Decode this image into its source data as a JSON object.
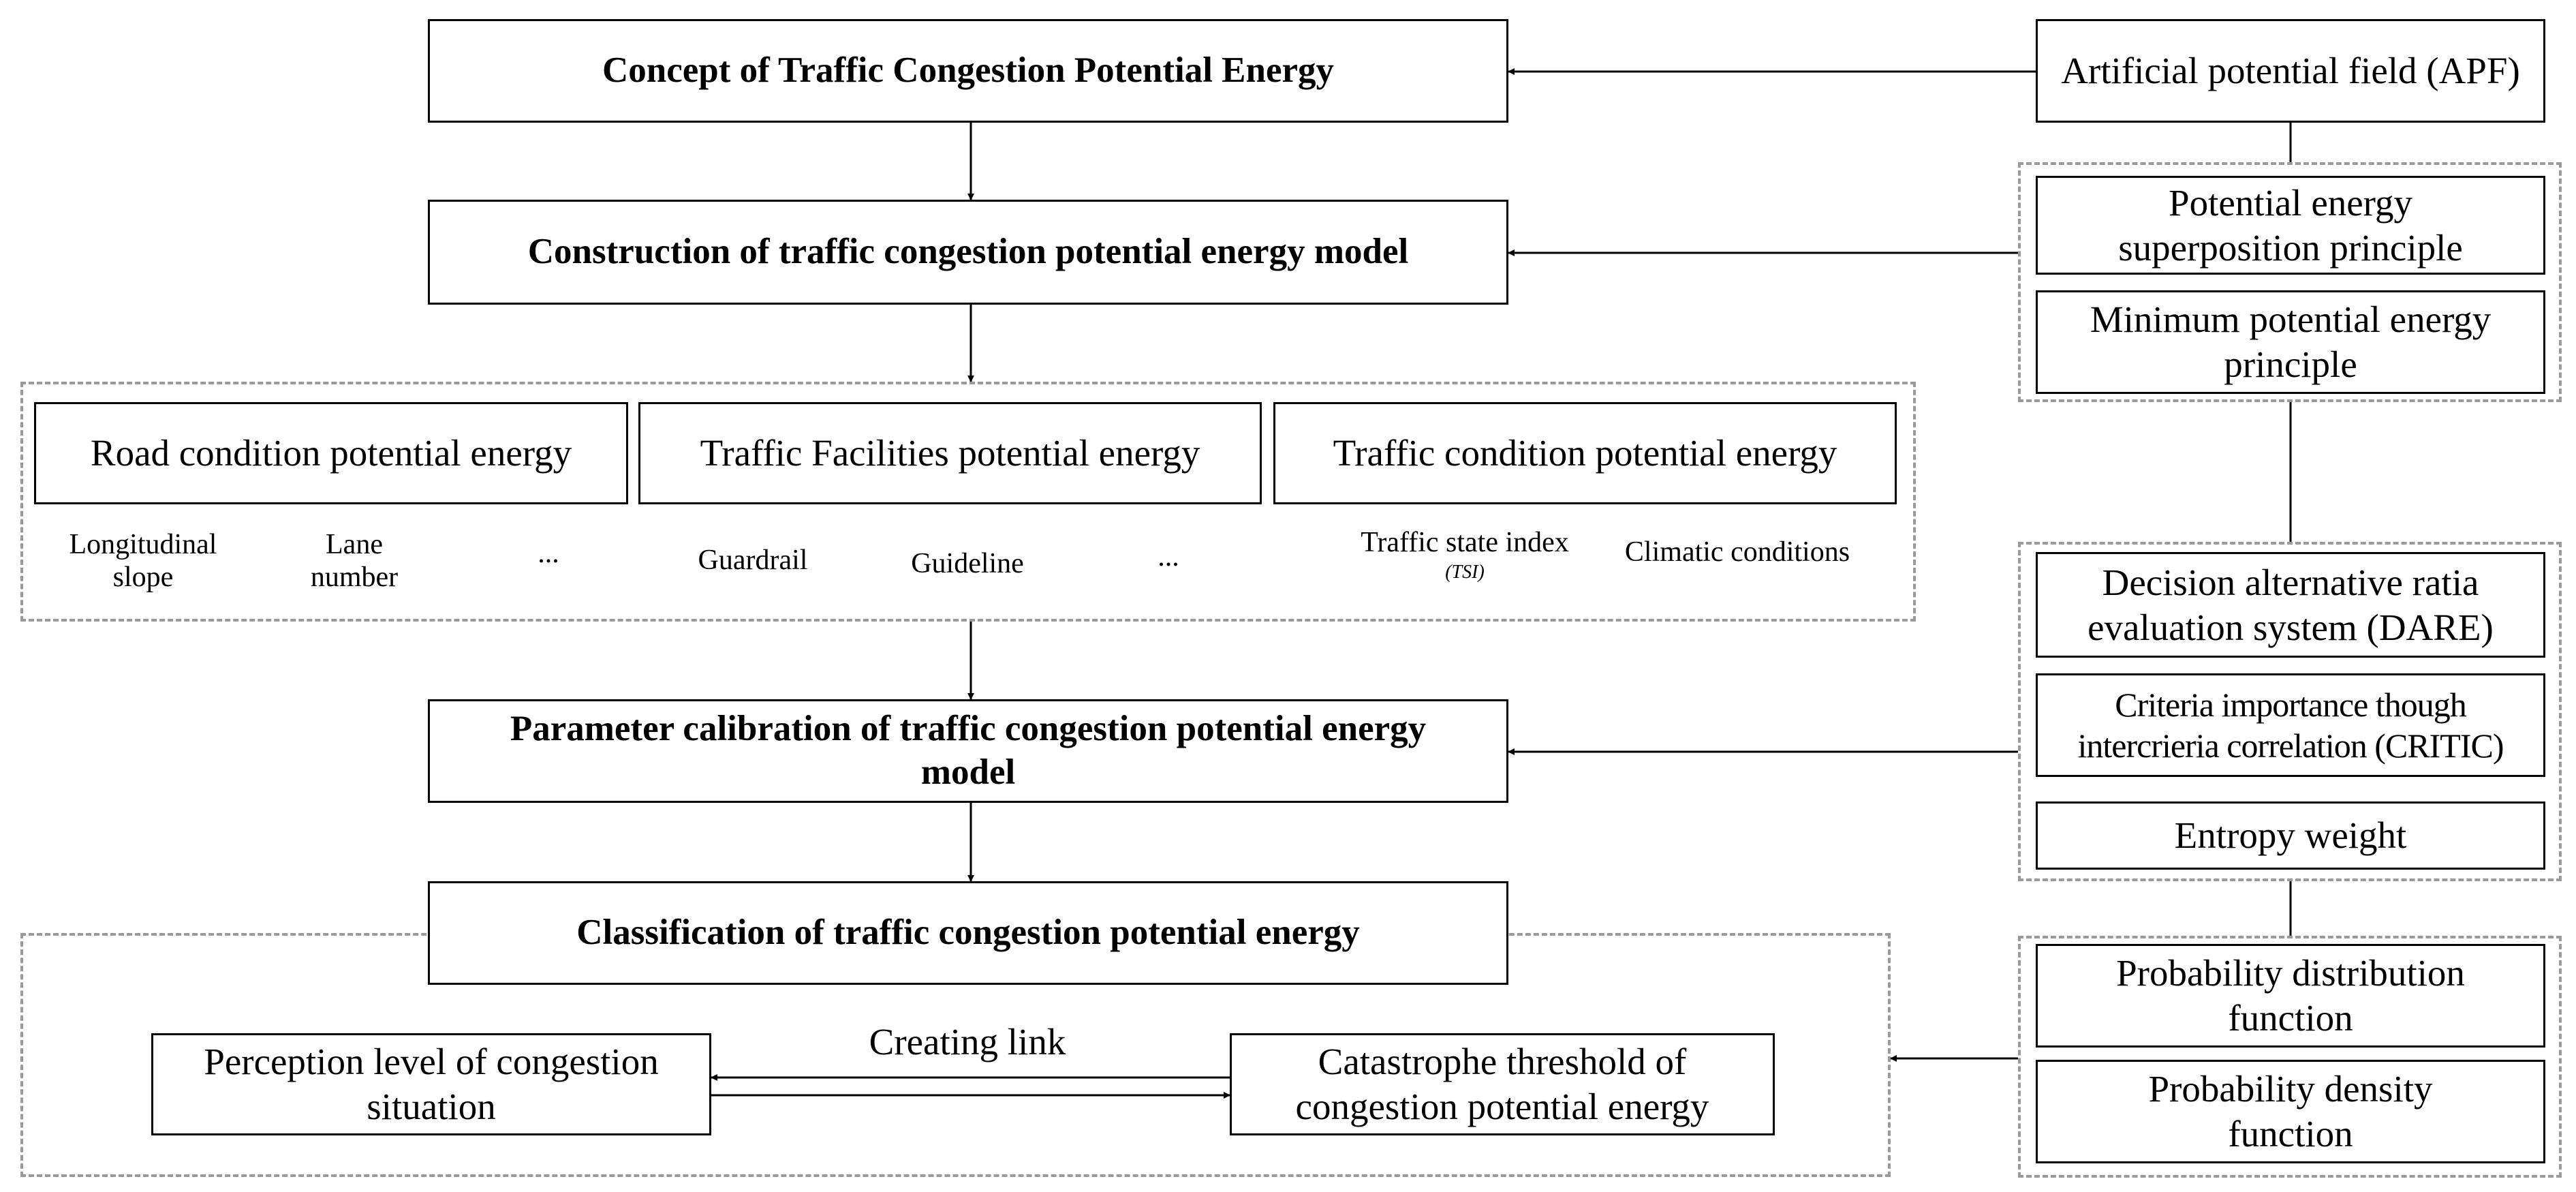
{
  "main_flow": {
    "concept": "Concept of Traffic Congestion Potential Energy",
    "construction": "Construction of traffic congestion potential energy model",
    "calibration": "Parameter calibration of traffic congestion potential energy model",
    "classification": "Classification of traffic congestion potential energy"
  },
  "potential_energy_groups": {
    "road": {
      "title": "Road condition potential energy",
      "items": [
        "Longitudinal slope",
        "Lane number",
        "..."
      ]
    },
    "facilities": {
      "title": "Traffic Facilities potential energy",
      "items": [
        "Guardrail",
        "Guideline",
        "..."
      ]
    },
    "traffic": {
      "title": "Traffic condition potential energy",
      "items": [
        "Traffic state index",
        "Climatic conditions"
      ],
      "tsi_abbrev": "(TSI)"
    }
  },
  "classification_detail": {
    "perception": "Perception level of congestion situation",
    "link_label": "Creating link",
    "catastrophe": "Catastrophe threshold of congestion potential energy"
  },
  "methods": {
    "apf": "Artificial potential field (APF)",
    "superposition": "Potential energy superposition principle",
    "minimum": "Minimum potential energy principle",
    "dare": "Decision alternative ratia evaluation system (DARE)",
    "critic": "Criteria importance though intercrieria correlation (CRITIC)",
    "entropy": "Entropy weight",
    "pdf_dist": "Probability distribution function",
    "pdf_density": "Probability density function"
  }
}
